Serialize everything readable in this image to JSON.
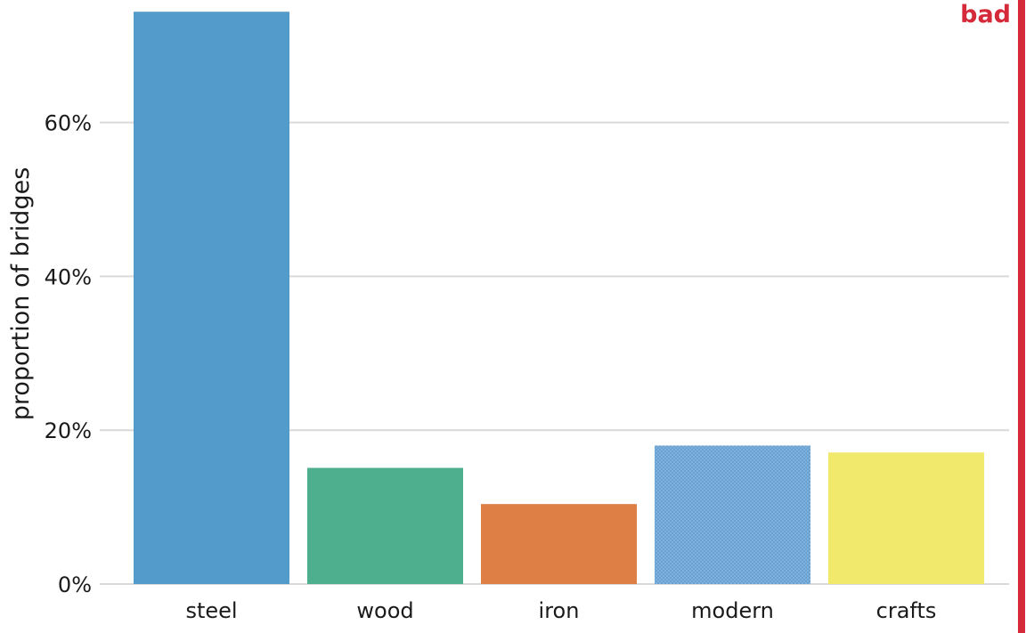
{
  "chart_data": {
    "type": "bar",
    "title": "",
    "xlabel": "",
    "ylabel": "proportion of bridges",
    "categories": [
      "steel",
      "wood",
      "iron",
      "modern",
      "crafts"
    ],
    "values": [
      74.4,
      15.1,
      10.4,
      18.0,
      17.1
    ],
    "bar_colors": [
      "#529bcb",
      "#4eaf8e",
      "#de7f45",
      "#6aa3d4",
      "#f1e96c"
    ],
    "patterned": [
      false,
      false,
      false,
      true,
      false
    ],
    "ylim": [
      0,
      75
    ],
    "yticks": [
      0,
      20,
      40,
      60
    ],
    "ytick_labels": [
      "0%",
      "20%",
      "40%",
      "60%"
    ],
    "grid": true,
    "grid_color": "#d9d9d9"
  },
  "badge": {
    "label": "bad",
    "color": "#d42a3a"
  }
}
